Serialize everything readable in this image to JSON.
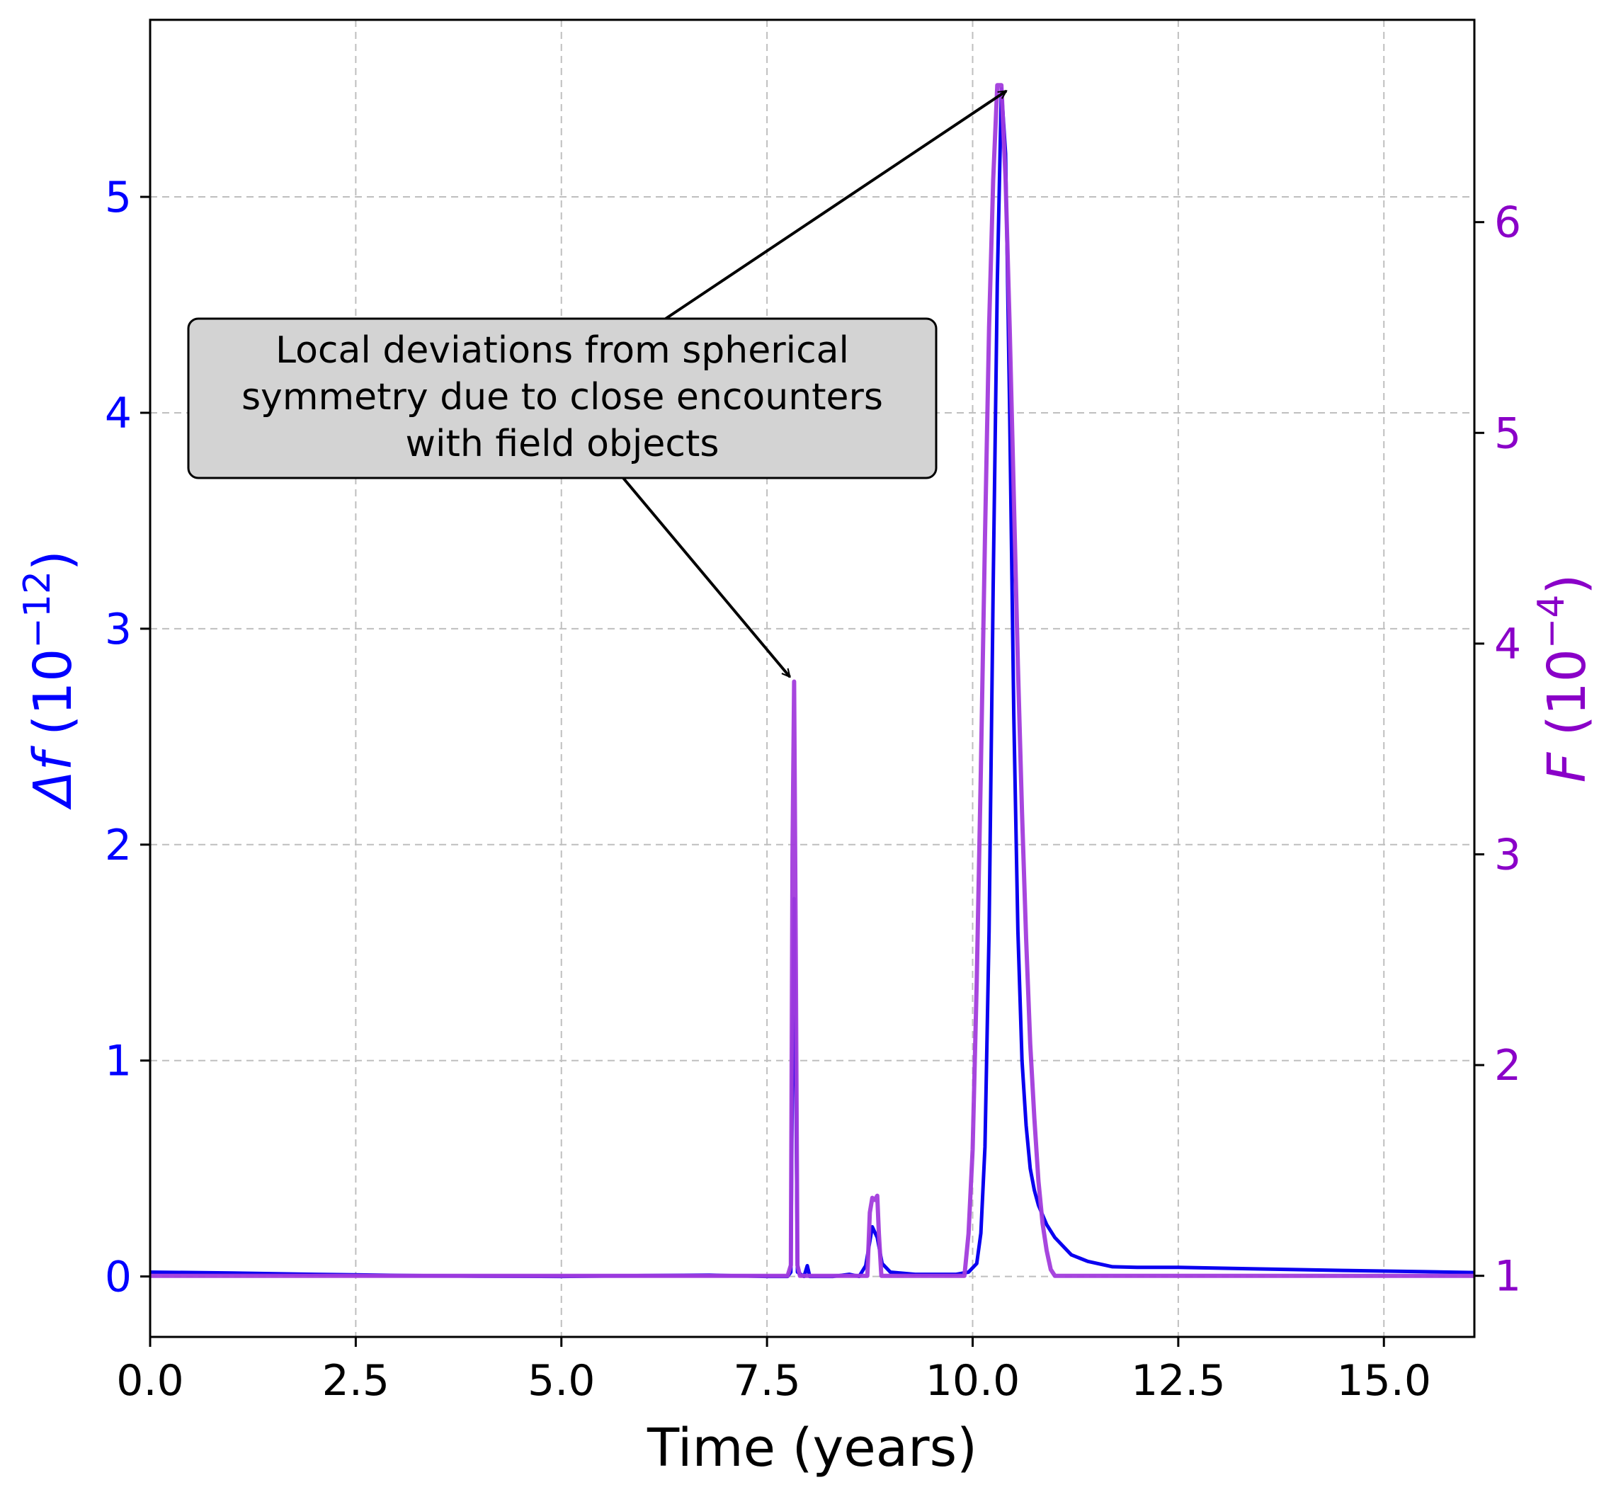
{
  "chart_data": {
    "type": "line",
    "title": "",
    "xlabel": "Time (years)",
    "ylabel_left": "Δf (10⁻¹²)",
    "ylabel_left_parts": {
      "symbol": "Δf",
      "base": "(10",
      "exp": "−12",
      "close": ")"
    },
    "ylabel_right": "F (10⁻⁴)",
    "ylabel_right_parts": {
      "symbol": "F",
      "base": "(10",
      "exp": "−4",
      "close": ")"
    },
    "xlim": [
      0.0,
      16.1
    ],
    "ylim_left": [
      -0.28,
      5.82
    ],
    "ylim_right": [
      0.71,
      6.96
    ],
    "grid": true,
    "x_ticks": [
      {
        "value": 0.0,
        "label": "0.0"
      },
      {
        "value": 2.5,
        "label": "2.5"
      },
      {
        "value": 5.0,
        "label": "5.0"
      },
      {
        "value": 7.5,
        "label": "7.5"
      },
      {
        "value": 10.0,
        "label": "10.0"
      },
      {
        "value": 12.5,
        "label": "12.5"
      },
      {
        "value": 15.0,
        "label": "15.0"
      }
    ],
    "y_left_ticks": [
      {
        "value": 0,
        "label": "0"
      },
      {
        "value": 1,
        "label": "1"
      },
      {
        "value": 2,
        "label": "2"
      },
      {
        "value": 3,
        "label": "3"
      },
      {
        "value": 4,
        "label": "4"
      },
      {
        "value": 5,
        "label": "5"
      }
    ],
    "y_right_ticks": [
      {
        "value": 1,
        "label": "1"
      },
      {
        "value": 2,
        "label": "2"
      },
      {
        "value": 3,
        "label": "3"
      },
      {
        "value": 4,
        "label": "4"
      },
      {
        "value": 5,
        "label": "5"
      },
      {
        "value": 6,
        "label": "6"
      }
    ],
    "colors": {
      "left_axis": "#0000ff",
      "right_axis": "#8a00c8",
      "series_df": "#0a00f0",
      "series_F": "#a23cdc",
      "grid": "#bfbfbf",
      "annotation_box": "#d3d3d3"
    },
    "series": [
      {
        "name": "Δf",
        "axis": "left",
        "color": "#0a00f0",
        "points": [
          [
            0.0,
            0.02
          ],
          [
            1.0,
            0.016
          ],
          [
            2.0,
            0.01
          ],
          [
            3.0,
            0.005
          ],
          [
            4.0,
            0.001
          ],
          [
            5.0,
            0.0
          ],
          [
            6.0,
            0.004
          ],
          [
            6.8,
            0.006
          ],
          [
            7.5,
            0.0
          ],
          [
            7.75,
            0.0
          ],
          [
            7.79,
            0.02
          ],
          [
            7.81,
            1.0
          ],
          [
            7.83,
            1.75
          ],
          [
            7.85,
            0.9
          ],
          [
            7.87,
            0.02
          ],
          [
            7.95,
            0.0
          ],
          [
            7.99,
            0.05
          ],
          [
            8.02,
            0.0
          ],
          [
            8.3,
            0.0
          ],
          [
            8.5,
            0.01
          ],
          [
            8.62,
            0.0
          ],
          [
            8.7,
            0.05
          ],
          [
            8.78,
            0.23
          ],
          [
            8.84,
            0.18
          ],
          [
            8.9,
            0.06
          ],
          [
            9.0,
            0.02
          ],
          [
            9.3,
            0.01
          ],
          [
            9.8,
            0.01
          ],
          [
            9.95,
            0.02
          ],
          [
            10.05,
            0.06
          ],
          [
            10.1,
            0.2
          ],
          [
            10.15,
            0.6
          ],
          [
            10.2,
            1.6
          ],
          [
            10.25,
            3.2
          ],
          [
            10.3,
            4.6
          ],
          [
            10.35,
            5.5
          ],
          [
            10.4,
            5.2
          ],
          [
            10.45,
            4.0
          ],
          [
            10.5,
            2.6
          ],
          [
            10.55,
            1.6
          ],
          [
            10.6,
            1.0
          ],
          [
            10.65,
            0.7
          ],
          [
            10.7,
            0.5
          ],
          [
            10.75,
            0.4
          ],
          [
            10.8,
            0.33
          ],
          [
            10.9,
            0.24
          ],
          [
            11.0,
            0.18
          ],
          [
            11.2,
            0.1
          ],
          [
            11.4,
            0.07
          ],
          [
            11.7,
            0.045
          ],
          [
            12.0,
            0.042
          ],
          [
            12.5,
            0.042
          ],
          [
            13.5,
            0.035
          ],
          [
            14.5,
            0.028
          ],
          [
            15.5,
            0.022
          ],
          [
            16.1,
            0.018
          ]
        ]
      },
      {
        "name": "F",
        "axis": "right",
        "color": "#a23cdc",
        "points": [
          [
            0.0,
            1.0
          ],
          [
            7.75,
            1.0
          ],
          [
            7.79,
            1.05
          ],
          [
            7.81,
            3.0
          ],
          [
            7.83,
            3.82
          ],
          [
            7.85,
            2.5
          ],
          [
            7.87,
            1.05
          ],
          [
            7.9,
            1.0
          ],
          [
            8.72,
            1.0
          ],
          [
            8.75,
            1.3
          ],
          [
            8.78,
            1.37
          ],
          [
            8.81,
            1.36
          ],
          [
            8.84,
            1.38
          ],
          [
            8.86,
            1.2
          ],
          [
            8.89,
            1.0
          ],
          [
            9.9,
            1.0
          ],
          [
            9.95,
            1.2
          ],
          [
            10.0,
            1.6
          ],
          [
            10.05,
            2.4
          ],
          [
            10.1,
            3.4
          ],
          [
            10.15,
            4.5
          ],
          [
            10.2,
            5.5
          ],
          [
            10.25,
            6.2
          ],
          [
            10.3,
            6.65
          ],
          [
            10.35,
            6.65
          ],
          [
            10.4,
            6.2
          ],
          [
            10.45,
            5.5
          ],
          [
            10.5,
            4.7
          ],
          [
            10.55,
            3.9
          ],
          [
            10.6,
            3.2
          ],
          [
            10.65,
            2.6
          ],
          [
            10.7,
            2.1
          ],
          [
            10.75,
            1.75
          ],
          [
            10.8,
            1.45
          ],
          [
            10.85,
            1.25
          ],
          [
            10.9,
            1.12
          ],
          [
            10.95,
            1.03
          ],
          [
            11.0,
            1.0
          ],
          [
            16.1,
            1.0
          ]
        ]
      }
    ],
    "annotation": {
      "lines": [
        "Local deviations from spherical",
        "symmetry due to close encounters",
        "with field objects"
      ],
      "targets": [
        {
          "x": 7.83,
          "y_left": 2.77
        },
        {
          "x": 10.22,
          "y_left": 5.53
        }
      ]
    }
  }
}
